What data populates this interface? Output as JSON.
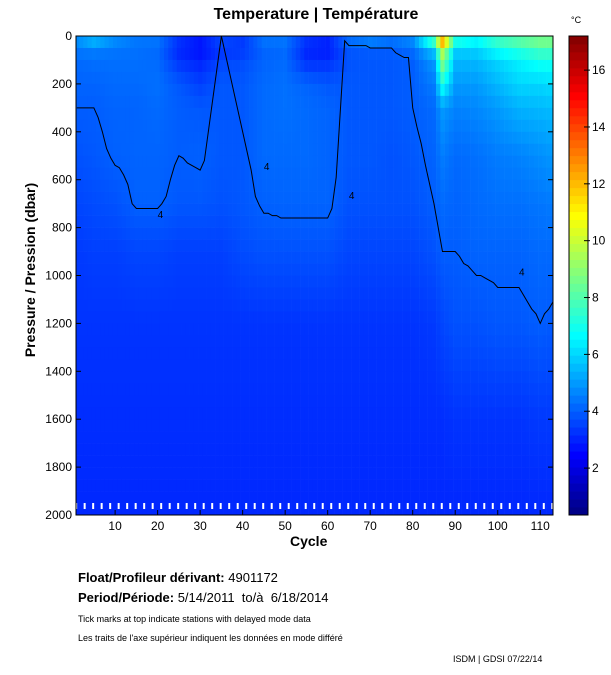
{
  "chart_data": {
    "type": "heatmap",
    "title": "Temperature | Température",
    "xlabel": "Cycle",
    "ylabel": "Pressure / Pression (dbar)",
    "colorbar_label": "°C",
    "xlim": [
      0.8,
      113
    ],
    "ylim": [
      2000,
      0
    ],
    "clim": [
      0.35,
      17.2
    ],
    "colormap": "jet",
    "xticks": [
      10,
      20,
      30,
      40,
      50,
      60,
      70,
      80,
      90,
      100,
      110
    ],
    "yticks": [
      0,
      200,
      400,
      600,
      800,
      1000,
      1200,
      1400,
      1600,
      1800,
      2000
    ],
    "cticks": [
      2,
      4,
      6,
      8,
      10,
      12,
      14,
      16
    ],
    "contour_level": 4,
    "contour_label": "4",
    "cycles": [
      1,
      5,
      10,
      15,
      20,
      25,
      30,
      35,
      40,
      45,
      50,
      55,
      60,
      65,
      70,
      75,
      80,
      85,
      87,
      90,
      95,
      100,
      105,
      110,
      114
    ],
    "pressures": [
      0,
      50,
      100,
      200,
      300,
      500,
      700,
      900,
      1200,
      1600,
      2000
    ],
    "temperature": [
      [
        5,
        4.5,
        4.2,
        4.1,
        4.0,
        3.8,
        3.6,
        3.4,
        3.3,
        3.2,
        3.1
      ],
      [
        6,
        4.6,
        4.3,
        4.1,
        4.0,
        3.9,
        3.7,
        3.5,
        3.3,
        3.2,
        3.1
      ],
      [
        5,
        4.4,
        4.3,
        4.2,
        4.1,
        4.05,
        3.8,
        3.5,
        3.3,
        3.2,
        3.1
      ],
      [
        4.5,
        4.3,
        4.3,
        4.2,
        4.1,
        4.1,
        4.05,
        3.6,
        3.3,
        3.2,
        3.1
      ],
      [
        4.5,
        4.2,
        4.2,
        4.3,
        4.2,
        4.1,
        4.05,
        3.6,
        3.3,
        3.2,
        3.1
      ],
      [
        3.5,
        3.0,
        3.3,
        3.9,
        4.0,
        4.0,
        3.9,
        3.5,
        3.3,
        3.2,
        3.1
      ],
      [
        3,
        2.6,
        3.0,
        3.5,
        3.9,
        4.05,
        3.9,
        3.5,
        3.3,
        3.2,
        3.1
      ],
      [
        4,
        3.2,
        3.6,
        3.9,
        3.9,
        3.9,
        3.8,
        3.5,
        3.3,
        3.2,
        3.1
      ],
      [
        3.5,
        3.3,
        3.7,
        3.9,
        3.9,
        3.9,
        3.9,
        3.7,
        3.3,
        3.2,
        3.1
      ],
      [
        4.5,
        4.1,
        4.1,
        4.2,
        4.2,
        4.2,
        4.05,
        3.8,
        3.3,
        3.2,
        3.1
      ],
      [
        4.5,
        4.2,
        4.2,
        4.3,
        4.3,
        4.2,
        4.1,
        3.8,
        3.3,
        3.2,
        3.1
      ],
      [
        3.5,
        3.0,
        3.2,
        4.1,
        4.2,
        4.2,
        4.1,
        3.8,
        3.3,
        3.2,
        3.1
      ],
      [
        3.2,
        2.8,
        3.2,
        3.9,
        4.1,
        4.1,
        4.1,
        3.8,
        3.3,
        3.2,
        3.1
      ],
      [
        4.5,
        3.9,
        3.8,
        3.9,
        3.9,
        3.9,
        3.8,
        3.6,
        3.3,
        3.2,
        3.1
      ],
      [
        5,
        4.0,
        3.9,
        3.9,
        3.9,
        3.9,
        3.8,
        3.6,
        3.3,
        3.2,
        3.1
      ],
      [
        4.5,
        4.0,
        3.9,
        3.9,
        3.9,
        3.8,
        3.8,
        3.6,
        3.3,
        3.2,
        3.1
      ],
      [
        5,
        4.3,
        4.0,
        4.0,
        4.0,
        3.9,
        3.8,
        3.6,
        3.3,
        3.2,
        3.1
      ],
      [
        9,
        6,
        5,
        4.5,
        4.2,
        4.1,
        4.0,
        3.8,
        3.4,
        3.2,
        3.1
      ],
      [
        14,
        10,
        9,
        7,
        5,
        4.5,
        4.2,
        4.0,
        3.6,
        3.2,
        3.1
      ],
      [
        8,
        6,
        5.5,
        5,
        4.6,
        4.2,
        4.1,
        4.0,
        3.8,
        3.3,
        3.1
      ],
      [
        7,
        6,
        5.5,
        5,
        4.7,
        4.3,
        4.2,
        4.1,
        3.8,
        3.3,
        3.1
      ],
      [
        8,
        7,
        6,
        5.5,
        5,
        4.5,
        4.3,
        4.1,
        3.9,
        3.3,
        3.1
      ],
      [
        8.5,
        7.5,
        6.5,
        6,
        5.4,
        4.6,
        4.3,
        4.1,
        3.9,
        3.3,
        3.1
      ],
      [
        9,
        8,
        7,
        6,
        5.5,
        4.8,
        4.4,
        4.2,
        4.0,
        3.4,
        3.1
      ],
      [
        9,
        8,
        7,
        6.2,
        5.6,
        5,
        4.5,
        4.2,
        3.9,
        3.4,
        3.1
      ]
    ]
  },
  "info": {
    "float_label": "Float/Profileur dérivant:",
    "float_id": "4901172",
    "period_label": "Period/Période:",
    "period_value": "5/14/2011  to/à  6/18/2014",
    "note_en": "Tick marks at top indicate stations with delayed mode data",
    "note_fr": "Les traits de l'axe supérieur indiquent les données en mode différé",
    "credit": "ISDM | GDSI  07/22/14"
  }
}
